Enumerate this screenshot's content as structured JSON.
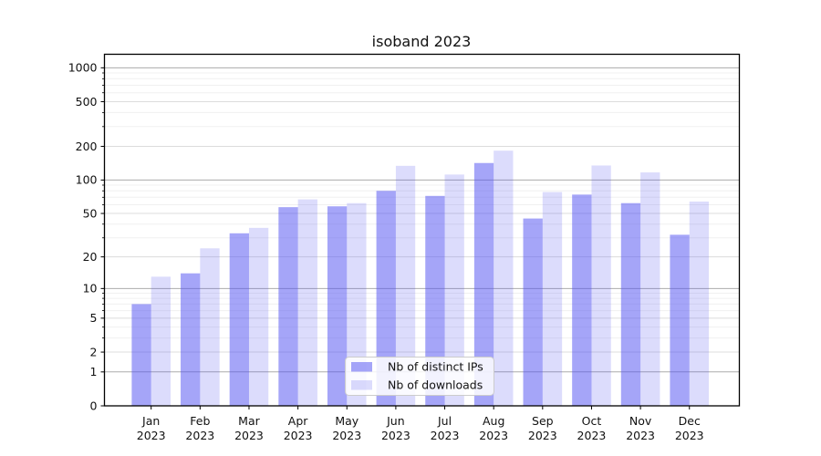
{
  "chart_data": {
    "type": "bar",
    "title": "isoband 2023",
    "x_months": [
      "Jan",
      "Feb",
      "Mar",
      "Apr",
      "May",
      "Jun",
      "Jul",
      "Aug",
      "Sep",
      "Oct",
      "Nov",
      "Dec"
    ],
    "x_year": "2023",
    "series": [
      {
        "name": "Nb of distinct IPs",
        "values": [
          7,
          14,
          33,
          57,
          58,
          80,
          72,
          142,
          45,
          74,
          62,
          32
        ],
        "fill": "rgba(82,82,242,0.52)"
      },
      {
        "name": "Nb of downloads",
        "values": [
          13,
          24,
          37,
          67,
          62,
          134,
          112,
          183,
          78,
          135,
          117,
          64
        ],
        "fill": "rgba(82,82,242,0.20)"
      }
    ],
    "yscale": "log1p",
    "yticks": [
      0,
      1,
      2,
      5,
      10,
      20,
      50,
      100,
      200,
      500,
      1000
    ],
    "major_yticks": [
      1,
      10,
      100,
      1000
    ],
    "ylim": [
      0,
      1319
    ],
    "grid": "both",
    "legend_position": "lower center",
    "colors": {
      "axis": "#000000",
      "grid_major": "#ababab",
      "grid_mid": "#dcdcdc",
      "grid_minor": "#f0f0f0",
      "legend_bg": "rgba(255,255,255,0.85)",
      "legend_border": "#cccccc",
      "background": "#ffffff"
    }
  }
}
